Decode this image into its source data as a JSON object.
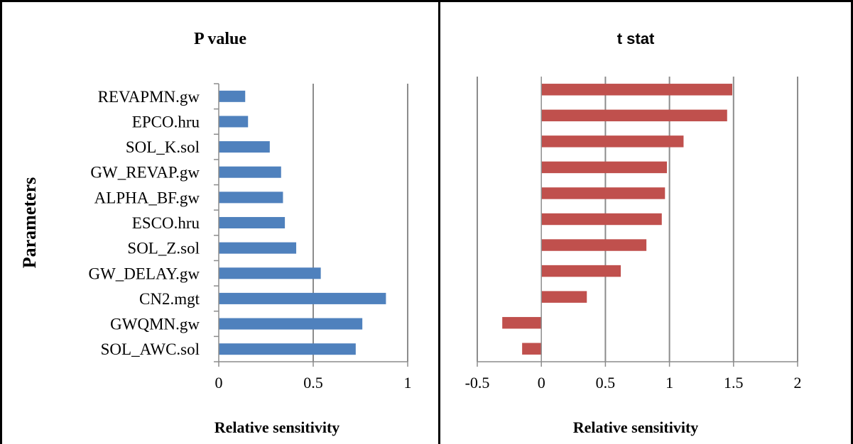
{
  "chart_data": [
    {
      "type": "bar",
      "orientation": "horizontal",
      "title": "P value",
      "xlabel": "Relative sensitivity",
      "ylabel": "Parameters",
      "xlim": [
        0,
        1
      ],
      "x_ticks": [
        "0",
        "0.5",
        "1"
      ],
      "x_tick_values": [
        0,
        0.5,
        1
      ],
      "grid": true,
      "bar_color": "#4f81bd",
      "categories": [
        "REVAPMN.gw",
        "EPCO.hru",
        "SOL_K.sol",
        "GW_REVAP.gw",
        "ALPHA_BF.gw",
        "ESCO.hru",
        "SOL_Z.sol",
        "GW_DELAY.gw",
        "CN2.mgt",
        "GWQMN.gw",
        "SOL_AWC.sol"
      ],
      "values": [
        0.14,
        0.155,
        0.27,
        0.33,
        0.34,
        0.35,
        0.41,
        0.54,
        0.885,
        0.76,
        0.725
      ]
    },
    {
      "type": "bar",
      "orientation": "horizontal",
      "title": "t stat",
      "xlabel": "Relative sensitivity",
      "ylabel": "",
      "xlim": [
        -0.5,
        2
      ],
      "x_ticks": [
        "-0.5",
        "0",
        "0.5",
        "1",
        "1.5",
        "2"
      ],
      "x_tick_values": [
        -0.5,
        0,
        0.5,
        1,
        1.5,
        2
      ],
      "grid": true,
      "bar_color": "#c0504d",
      "categories": [
        "REVAPMN.gw",
        "EPCO.hru",
        "SOL_K.sol",
        "GW_REVAP.gw",
        "ALPHA_BF.gw",
        "ESCO.hru",
        "SOL_Z.sol",
        "GW_DELAY.gw",
        "CN2.mgt",
        "GWQMN.gw",
        "SOL_AWC.sol"
      ],
      "values": [
        1.49,
        1.45,
        1.11,
        0.98,
        0.965,
        0.94,
        0.82,
        0.62,
        0.355,
        -0.305,
        -0.15
      ]
    }
  ]
}
